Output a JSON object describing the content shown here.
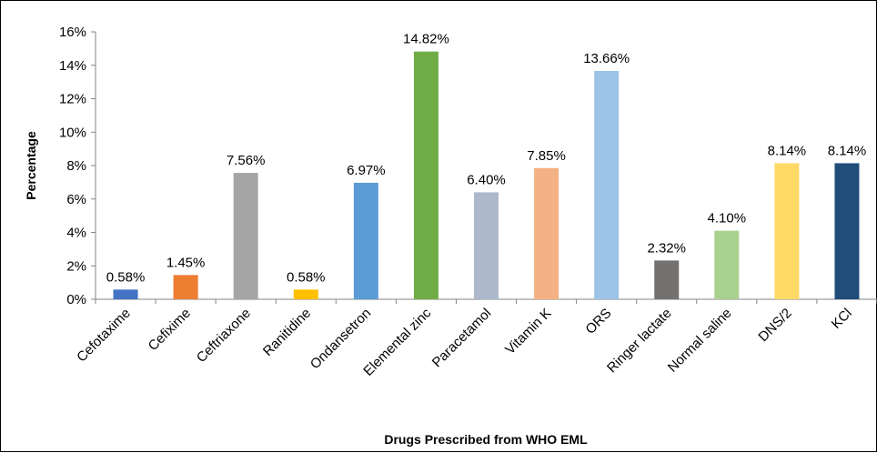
{
  "chart_data": {
    "type": "bar",
    "title": "",
    "xlabel": "Drugs Prescribed from WHO EML",
    "ylabel": "Percentage",
    "ylim": [
      0,
      16
    ],
    "yticks": [
      "0%",
      "2%",
      "4%",
      "6%",
      "8%",
      "10%",
      "12%",
      "14%",
      "16%"
    ],
    "grid": false,
    "legend": "none",
    "categories": [
      "Cefotaxime",
      "Cefixime",
      "Ceftriaxone",
      "Ranitidine",
      "Ondansetron",
      "Elemental zinc",
      "Paracetamol",
      "Vitamin K",
      "ORS",
      "Ringer lactate",
      "Normal saline",
      "DNS/2",
      "KCl"
    ],
    "values": [
      0.58,
      1.45,
      7.56,
      0.58,
      6.97,
      14.82,
      6.4,
      7.85,
      13.66,
      2.32,
      4.1,
      8.14,
      8.14
    ],
    "data_labels": [
      "0.58%",
      "1.45%",
      "7.56%",
      "0.58%",
      "6.97%",
      "14.82%",
      "6.40%",
      "7.85%",
      "13.66%",
      "2.32%",
      "4.10%",
      "8.14%",
      "8.14%"
    ],
    "colors": [
      "#4472C4",
      "#ED7D31",
      "#A5A5A5",
      "#FFC000",
      "#5B9BD5",
      "#70AD47",
      "#ADB9CA",
      "#F4B183",
      "#9DC3E6",
      "#767171",
      "#A9D18E",
      "#FFD966",
      "#1F4E79"
    ]
  }
}
